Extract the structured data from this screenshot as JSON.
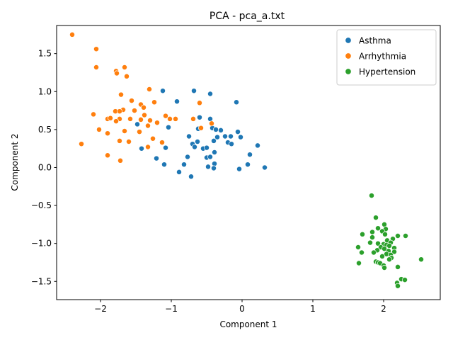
{
  "chart_data": {
    "type": "scatter",
    "title": "PCA - pca_a.txt",
    "xlabel": "Component 1",
    "ylabel": "Component 2",
    "xlim": [
      -2.62,
      2.8
    ],
    "ylim": [
      -1.74,
      1.87
    ],
    "xticks": [
      -2,
      -1,
      0,
      1,
      2
    ],
    "yticks": [
      -1.5,
      -1.0,
      -0.5,
      0.0,
      0.5,
      1.0,
      1.5
    ],
    "xtick_labels": [
      "−2",
      "−1",
      "0",
      "1",
      "2"
    ],
    "ytick_labels": [
      "−1.5",
      "−1.0",
      "−0.5",
      "0.0",
      "0.5",
      "1.0",
      "1.5"
    ],
    "grid": false,
    "legend_position": "upper-right",
    "series": [
      {
        "name": "Asthma",
        "color": "#1f77b4",
        "points": [
          [
            -1.12,
            1.01
          ],
          [
            -0.68,
            1.01
          ],
          [
            -0.45,
            0.97
          ],
          [
            -0.92,
            0.87
          ],
          [
            -0.08,
            0.86
          ],
          [
            -0.6,
            0.66
          ],
          [
            -0.45,
            0.64
          ],
          [
            -1.48,
            0.57
          ],
          [
            -1.04,
            0.53
          ],
          [
            -0.62,
            0.51
          ],
          [
            -0.42,
            0.52
          ],
          [
            -0.37,
            0.5
          ],
          [
            -0.3,
            0.49
          ],
          [
            -0.06,
            0.47
          ],
          [
            -0.75,
            0.41
          ],
          [
            -0.35,
            0.4
          ],
          [
            -0.24,
            0.41
          ],
          [
            -0.16,
            0.41
          ],
          [
            -0.02,
            0.4
          ],
          [
            -0.4,
            0.35
          ],
          [
            -0.2,
            0.33
          ],
          [
            -0.63,
            0.34
          ],
          [
            -0.7,
            0.31
          ],
          [
            -0.67,
            0.27
          ],
          [
            -0.15,
            0.31
          ],
          [
            0.22,
            0.29
          ],
          [
            -1.42,
            0.25
          ],
          [
            -1.08,
            0.26
          ],
          [
            -0.55,
            0.25
          ],
          [
            -0.5,
            0.26
          ],
          [
            -0.39,
            0.2
          ],
          [
            0.11,
            0.17
          ],
          [
            -0.77,
            0.14
          ],
          [
            -0.5,
            0.13
          ],
          [
            -0.45,
            0.14
          ],
          [
            -1.21,
            0.12
          ],
          [
            -1.1,
            0.04
          ],
          [
            -0.82,
            0.04
          ],
          [
            -0.39,
            0.05
          ],
          [
            0.08,
            0.04
          ],
          [
            -0.48,
            0.01
          ],
          [
            -0.4,
            -0.01
          ],
          [
            -0.04,
            -0.02
          ],
          [
            0.32,
            0.0
          ],
          [
            -0.89,
            -0.06
          ],
          [
            -0.72,
            -0.12
          ]
        ]
      },
      {
        "name": "Arrhythmia",
        "color": "#ff7f0e",
        "points": [
          [
            -2.4,
            1.75
          ],
          [
            -2.06,
            1.56
          ],
          [
            -2.06,
            1.32
          ],
          [
            -1.66,
            1.32
          ],
          [
            -1.78,
            1.27
          ],
          [
            -1.77,
            1.24
          ],
          [
            -1.63,
            1.2
          ],
          [
            -1.31,
            1.03
          ],
          [
            -1.71,
            0.96
          ],
          [
            -1.56,
            0.88
          ],
          [
            -1.24,
            0.86
          ],
          [
            -1.43,
            0.83
          ],
          [
            -0.6,
            0.85
          ],
          [
            -1.39,
            0.79
          ],
          [
            -1.68,
            0.76
          ],
          [
            -1.79,
            0.74
          ],
          [
            -1.73,
            0.74
          ],
          [
            -1.52,
            0.75
          ],
          [
            -2.1,
            0.7
          ],
          [
            -1.38,
            0.69
          ],
          [
            -1.08,
            0.68
          ],
          [
            -1.02,
            0.64
          ],
          [
            -0.94,
            0.64
          ],
          [
            -0.69,
            0.64
          ],
          [
            -1.9,
            0.64
          ],
          [
            -1.86,
            0.65
          ],
          [
            -1.73,
            0.64
          ],
          [
            -1.58,
            0.64
          ],
          [
            -1.43,
            0.63
          ],
          [
            -1.3,
            0.62
          ],
          [
            -1.78,
            0.61
          ],
          [
            -1.2,
            0.59
          ],
          [
            -0.43,
            0.58
          ],
          [
            -1.33,
            0.55
          ],
          [
            -0.58,
            0.52
          ],
          [
            -2.02,
            0.5
          ],
          [
            -1.66,
            0.48
          ],
          [
            -1.45,
            0.47
          ],
          [
            -1.9,
            0.45
          ],
          [
            -1.26,
            0.38
          ],
          [
            -1.73,
            0.35
          ],
          [
            -1.6,
            0.34
          ],
          [
            -1.13,
            0.33
          ],
          [
            -2.27,
            0.31
          ],
          [
            -1.33,
            0.27
          ],
          [
            -1.9,
            0.16
          ],
          [
            -1.72,
            0.09
          ]
        ]
      },
      {
        "name": "Hypertension",
        "color": "#2ca02c",
        "points": [
          [
            1.83,
            -0.37
          ],
          [
            1.89,
            -0.66
          ],
          [
            2.01,
            -0.75
          ],
          [
            1.92,
            -0.8
          ],
          [
            2.03,
            -0.81
          ],
          [
            1.98,
            -0.84
          ],
          [
            1.84,
            -0.85
          ],
          [
            1.7,
            -0.88
          ],
          [
            2.02,
            -0.88
          ],
          [
            2.2,
            -0.9
          ],
          [
            2.31,
            -0.9
          ],
          [
            1.84,
            -0.92
          ],
          [
            2.13,
            -0.94
          ],
          [
            2.05,
            -0.96
          ],
          [
            2.1,
            -0.99
          ],
          [
            1.81,
            -0.99
          ],
          [
            1.92,
            -1.0
          ],
          [
            2.0,
            -1.01
          ],
          [
            2.04,
            -1.02
          ],
          [
            2.08,
            -1.03
          ],
          [
            1.96,
            -1.05
          ],
          [
            1.64,
            -1.05
          ],
          [
            2.15,
            -1.06
          ],
          [
            2.01,
            -1.07
          ],
          [
            1.91,
            -1.09
          ],
          [
            2.07,
            -1.1
          ],
          [
            2.15,
            -1.11
          ],
          [
            1.86,
            -1.12
          ],
          [
            1.69,
            -1.12
          ],
          [
            2.04,
            -1.14
          ],
          [
            2.1,
            -1.15
          ],
          [
            1.98,
            -1.17
          ],
          [
            2.11,
            -1.19
          ],
          [
            2.08,
            -1.21
          ],
          [
            2.53,
            -1.21
          ],
          [
            1.89,
            -1.24
          ],
          [
            1.92,
            -1.25
          ],
          [
            1.65,
            -1.26
          ],
          [
            1.95,
            -1.26
          ],
          [
            2.0,
            -1.29
          ],
          [
            2.2,
            -1.31
          ],
          [
            2.01,
            -1.32
          ],
          [
            2.25,
            -1.47
          ],
          [
            2.3,
            -1.48
          ],
          [
            2.19,
            -1.52
          ],
          [
            2.2,
            -1.56
          ]
        ]
      }
    ]
  }
}
